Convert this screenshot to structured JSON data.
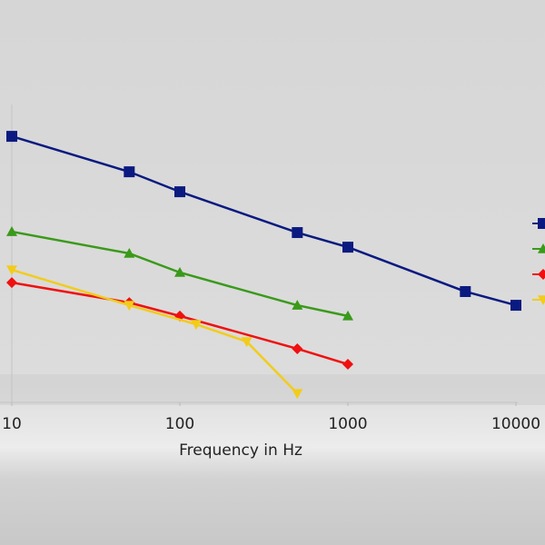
{
  "chart_data": {
    "type": "line",
    "x_label": "Frequency in Hz",
    "xscale": "log",
    "xlim": [
      10,
      10000
    ],
    "xticks": [
      10,
      100,
      1000,
      10000
    ],
    "ylim": [
      0,
      100
    ],
    "series": [
      {
        "color": "#0a1a80",
        "marker": "square",
        "x": [
          10,
          50,
          100,
          500,
          1000,
          5000,
          10000
        ],
        "values": [
          89.3,
          77.4,
          70.7,
          57.0,
          52.1,
          37.2,
          32.6
        ]
      },
      {
        "color": "#3a9a1a",
        "marker": "triangle",
        "x": [
          10,
          50,
          100,
          500,
          1000
        ],
        "values": [
          57.3,
          50.0,
          43.6,
          32.6,
          29.0
        ]
      },
      {
        "color": "#f01010",
        "marker": "diamond",
        "x": [
          10,
          50,
          100,
          500,
          1000
        ],
        "values": [
          40.2,
          33.5,
          29.0,
          18.0,
          12.8
        ]
      },
      {
        "color": "#f2cc1a",
        "marker": "triangle-down",
        "x": [
          10,
          50,
          125,
          250,
          500
        ],
        "values": [
          44.5,
          32.6,
          26.2,
          20.4,
          3.0
        ]
      }
    ]
  }
}
